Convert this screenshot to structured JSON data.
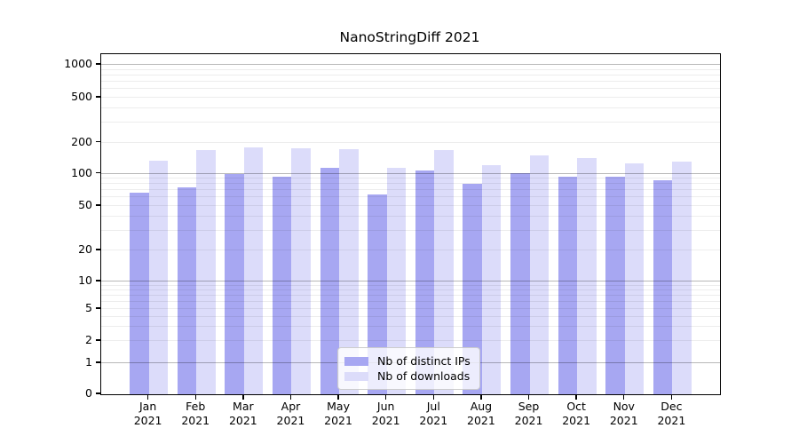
{
  "chart_data": {
    "type": "bar",
    "title": "NanoStringDiff 2021",
    "categories": [
      "Jan",
      "Feb",
      "Mar",
      "Apr",
      "May",
      "Jun",
      "Jul",
      "Aug",
      "Sep",
      "Oct",
      "Nov",
      "Dec"
    ],
    "year_label": "2021",
    "series": [
      {
        "name": "Nb of distinct IPs",
        "values": [
          66,
          74,
          100,
          94,
          114,
          64,
          107,
          80,
          102,
          94,
          93,
          87
        ]
      },
      {
        "name": "Nb of downloads",
        "values": [
          133,
          168,
          178,
          175,
          172,
          115,
          170,
          122,
          150,
          142,
          126,
          131
        ]
      }
    ],
    "y_ticks": [
      0,
      1,
      2,
      5,
      10,
      20,
      50,
      100,
      200,
      500,
      1000
    ],
    "y_scale": "log-like (compressed below 10)",
    "ylim": [
      0,
      1000
    ],
    "grid": true,
    "legend_position": "bottom-center"
  },
  "colors": {
    "bar_ips": "#a7a7f2",
    "bar_downloads": "#dcdcfa",
    "grid_major": "rgba(0,0,0,0.28)",
    "grid_minor": "rgba(0,0,0,0.07)",
    "spine": "#000000",
    "legend_border": "#cccccc",
    "legend_bg": "rgba(255,255,255,0.8)",
    "text": "#000000"
  }
}
